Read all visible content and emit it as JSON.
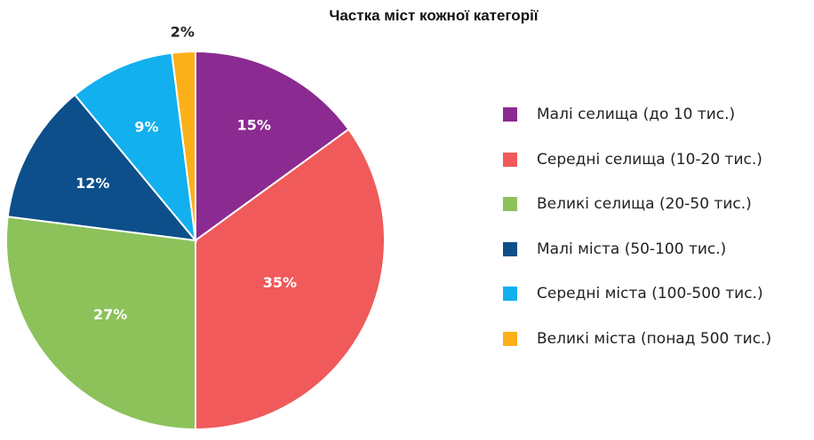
{
  "chart_data": {
    "type": "pie",
    "title": "Частка міст кожної категорії",
    "categories": [
      "Малі селища (до 10 тис.)",
      "Середні селища (10-20 тис.)",
      "Великі селища (20-50 тис.)",
      "Малі міста (50-100 тис.)",
      "Середні міста (100-500 тис.)",
      "Великі міста (понад 500 тис.)"
    ],
    "values": [
      15,
      35,
      27,
      12,
      9,
      2
    ],
    "labels": [
      "15%",
      "35%",
      "27%",
      "12%",
      "9%",
      "2%"
    ],
    "colors": [
      "#8B2A91",
      "#F05A5A",
      "#8DC15A",
      "#0D4F8B",
      "#12B0EE",
      "#FBB01A"
    ],
    "legend_position": "right"
  }
}
